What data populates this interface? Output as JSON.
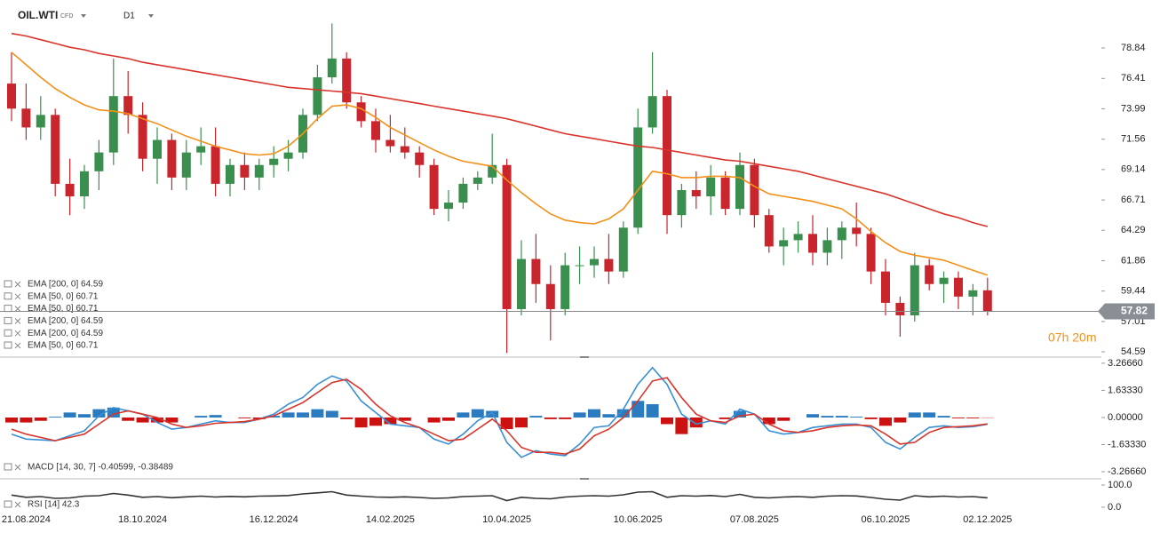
{
  "header": {
    "symbol": "OIL.WTI",
    "instrument_type": "CFD",
    "timeframe": "D1"
  },
  "countdown": "07h 20m",
  "chart_data": [
    {
      "type": "candlestick",
      "categories": [
        null,
        "21.08.2024",
        null,
        null,
        null,
        null,
        null,
        null,
        null,
        "18.10.2024",
        null,
        null,
        null,
        null,
        null,
        null,
        null,
        null,
        "16.12.2024",
        null,
        null,
        null,
        null,
        null,
        null,
        null,
        "14.02.2025",
        null,
        null,
        null,
        null,
        null,
        null,
        null,
        "10.04.2025",
        null,
        null,
        null,
        null,
        null,
        null,
        null,
        null,
        "10.06.2025",
        null,
        null,
        null,
        null,
        null,
        null,
        null,
        "07.08.2025",
        null,
        null,
        null,
        null,
        null,
        null,
        null,
        null,
        "06.10.2025",
        null,
        null,
        null,
        null,
        null,
        null,
        "02.12.2025"
      ],
      "ohlc": [
        [
          76,
          78.5,
          73,
          74
        ],
        [
          74,
          76,
          71.5,
          72.5
        ],
        [
          72.5,
          75,
          71.5,
          73.5
        ],
        [
          73.5,
          74,
          67,
          68
        ],
        [
          68,
          70,
          65.5,
          67
        ],
        [
          67,
          69.5,
          66,
          69
        ],
        [
          69,
          71.5,
          67.5,
          70.5
        ],
        [
          70.5,
          78,
          69.5,
          75
        ],
        [
          75,
          77,
          72,
          73.5
        ],
        [
          73.5,
          74.5,
          69,
          70
        ],
        [
          70,
          72.5,
          68,
          71.5
        ],
        [
          71.5,
          72,
          67.5,
          68.5
        ],
        [
          68.5,
          71.5,
          67.5,
          70.5
        ],
        [
          70.5,
          72.5,
          69.5,
          71
        ],
        [
          71,
          72.5,
          67,
          68
        ],
        [
          68,
          70,
          67,
          69.5
        ],
        [
          69.5,
          70.5,
          67.5,
          68.5
        ],
        [
          68.5,
          70,
          67.5,
          69.5
        ],
        [
          69.5,
          71,
          68.5,
          70
        ],
        [
          70,
          71.5,
          69,
          70.5
        ],
        [
          70.5,
          74,
          70,
          73.5
        ],
        [
          73.5,
          77.5,
          73,
          76.5
        ],
        [
          76.5,
          80.8,
          76,
          78
        ],
        [
          78,
          78.5,
          74,
          74.5
        ],
        [
          74.5,
          75,
          72.5,
          73
        ],
        [
          73,
          74,
          70.5,
          71.5
        ],
        [
          71.5,
          73.5,
          70.5,
          71
        ],
        [
          71,
          72.5,
          70,
          70.5
        ],
        [
          70.5,
          71,
          68.5,
          69.5
        ],
        [
          69.5,
          70,
          65.5,
          66
        ],
        [
          66,
          67.5,
          65,
          66.5
        ],
        [
          66.5,
          68.5,
          66,
          68
        ],
        [
          68,
          69,
          67.5,
          68.5
        ],
        [
          68.5,
          72,
          68,
          69.5
        ],
        [
          69.5,
          70,
          54.5,
          58
        ],
        [
          58,
          63.5,
          57.5,
          62
        ],
        [
          62,
          64,
          58.5,
          60
        ],
        [
          60,
          61.5,
          55.5,
          58
        ],
        [
          58,
          62.5,
          57.5,
          61.5
        ],
        [
          61.5,
          63,
          60,
          61.5
        ],
        [
          61.5,
          63,
          60.5,
          62
        ],
        [
          62,
          64,
          60,
          61
        ],
        [
          61,
          65,
          60.5,
          64.5
        ],
        [
          64.5,
          74,
          64,
          72.5
        ],
        [
          72.5,
          78.5,
          72,
          75
        ],
        [
          75,
          75.5,
          64,
          65.5
        ],
        [
          65.5,
          68,
          64.5,
          67.5
        ],
        [
          67.5,
          69,
          66,
          67
        ],
        [
          67,
          69.5,
          65.5,
          68.5
        ],
        [
          68.5,
          69,
          65.5,
          66
        ],
        [
          66,
          70.5,
          65.5,
          69.5
        ],
        [
          69.5,
          70,
          64.5,
          65.5
        ],
        [
          65.5,
          66,
          62.5,
          63
        ],
        [
          63,
          64.5,
          61.5,
          63.5
        ],
        [
          63.5,
          65,
          62.5,
          64
        ],
        [
          64,
          65.5,
          61.5,
          62.5
        ],
        [
          62.5,
          64.5,
          61.5,
          63.5
        ],
        [
          63.5,
          65,
          62,
          64.5
        ],
        [
          64.5,
          66.5,
          63,
          64
        ],
        [
          64,
          64.5,
          60,
          61
        ],
        [
          61,
          62,
          57.5,
          58.5
        ],
        [
          58.5,
          59,
          55.8,
          57.5
        ],
        [
          57.5,
          62.5,
          57,
          61.5
        ],
        [
          61.5,
          62,
          59.5,
          60
        ],
        [
          60,
          61,
          58.5,
          60.5
        ],
        [
          60.5,
          61,
          58,
          59
        ],
        [
          59,
          60,
          57.5,
          59.5
        ],
        [
          59.5,
          60.5,
          57.5,
          57.82
        ]
      ],
      "colors": {
        "up": "#3a8f4e",
        "down": "#c8252c"
      },
      "series": [
        {
          "color": "#d9342b",
          "values": [
            80.0,
            79.8,
            79.5,
            79.2,
            78.9,
            78.7,
            78.4,
            78.2,
            78.0,
            77.7,
            77.5,
            77.3,
            77.1,
            76.9,
            76.7,
            76.5,
            76.3,
            76.1,
            75.9,
            75.7,
            75.6,
            75.5,
            75.4,
            75.3,
            75.2,
            75.0,
            74.8,
            74.6,
            74.4,
            74.2,
            74.0,
            73.8,
            73.6,
            73.4,
            73.2,
            72.9,
            72.6,
            72.3,
            72.0,
            71.8,
            71.6,
            71.4,
            71.2,
            71.0,
            70.9,
            70.7,
            70.5,
            70.3,
            70.1,
            69.9,
            69.8,
            69.6,
            69.4,
            69.2,
            69.0,
            68.7,
            68.4,
            68.1,
            67.8,
            67.5,
            67.2,
            66.8,
            66.4,
            66.0,
            65.6,
            65.3,
            64.9,
            64.59
          ]
        },
        {
          "color": "#f39019",
          "values": [
            78.5,
            77.5,
            76.5,
            75.6,
            74.9,
            74.3,
            73.9,
            73.8,
            73.6,
            73.2,
            72.8,
            72.3,
            71.8,
            71.4,
            71.0,
            70.7,
            70.4,
            70.3,
            70.4,
            71.0,
            72.0,
            73.2,
            74.2,
            74.3,
            74.0,
            73.3,
            72.5,
            71.9,
            71.3,
            70.7,
            70.2,
            69.8,
            69.6,
            69.4,
            68.3,
            67.3,
            66.4,
            65.6,
            65.1,
            64.9,
            64.8,
            65.2,
            66.0,
            67.5,
            69.0,
            68.8,
            68.5,
            68.5,
            68.6,
            68.6,
            68.5,
            67.8,
            67.2,
            67.0,
            66.8,
            66.6,
            66.3,
            66.0,
            65.2,
            64.2,
            63.3,
            62.6,
            62.3,
            62.1,
            61.9,
            61.5,
            61.1,
            60.71
          ]
        }
      ],
      "legend": [
        "EMA [200, 0] 64.59",
        "EMA [50, 0] 60.71",
        "EMA [50, 0] 60.71",
        "EMA [200, 0] 64.59",
        "EMA [200, 0] 64.59",
        "EMA [50, 0] 60.71"
      ],
      "current_price": 57.82,
      "ylim": [
        54.31,
        82.67
      ],
      "yticks": [
        78.84,
        76.41,
        73.99,
        71.56,
        69.14,
        66.71,
        64.29,
        61.86,
        59.44,
        57.01,
        54.59
      ]
    },
    {
      "type": "macd",
      "legend": "MACD [14, 30, 7] -0.40599, -0.38489",
      "histogram": {
        "colors": {
          "up": "#2a7bc0",
          "down": "#cc1111"
        },
        "values": [
          -0.3,
          -0.3,
          -0.2,
          0.05,
          0.3,
          0.2,
          0.5,
          0.6,
          -0.2,
          -0.3,
          -0.3,
          -0.3,
          0,
          0.1,
          0.15,
          0,
          -0.05,
          -0.1,
          0.1,
          0.3,
          0.3,
          0.5,
          0.4,
          -0.1,
          -0.6,
          -0.5,
          -0.4,
          -0.2,
          0,
          -0.3,
          -0.2,
          0.3,
          0.5,
          0.4,
          -0.7,
          -0.6,
          0.1,
          -0.1,
          -0.1,
          0.3,
          0.5,
          0.2,
          0.5,
          1.0,
          0.8,
          -0.4,
          -1.0,
          -0.6,
          0,
          -0.1,
          0.4,
          0,
          -0.4,
          -0.2,
          0,
          0.2,
          0.1,
          0.1,
          0.05,
          -0.1,
          -0.5,
          -0.3,
          0.3,
          0.3,
          0.1,
          -0.05,
          -0.05,
          -0.02
        ]
      },
      "series": [
        {
          "color": "#3a8fd4",
          "values": [
            -1.0,
            -1.3,
            -1.35,
            -1.4,
            -1.1,
            -0.8,
            0.1,
            0.6,
            0.4,
            0.2,
            -0.3,
            -0.7,
            -0.6,
            -0.4,
            -0.2,
            -0.3,
            -0.3,
            -0.1,
            0.2,
            0.8,
            1.2,
            2.0,
            2.5,
            2.2,
            1.0,
            0.3,
            -0.4,
            -0.5,
            -0.6,
            -1.3,
            -1.6,
            -1.0,
            -0.2,
            0.3,
            -1.5,
            -2.4,
            -2.0,
            -2.2,
            -2.3,
            -1.6,
            -0.6,
            -0.5,
            0.5,
            2.0,
            3.0,
            2.0,
            0.2,
            -0.4,
            -0.2,
            -0.4,
            0.5,
            0.2,
            -0.8,
            -1.0,
            -0.9,
            -0.6,
            -0.5,
            -0.4,
            -0.4,
            -0.6,
            -1.5,
            -1.9,
            -1.2,
            -0.6,
            -0.5,
            -0.6,
            -0.55,
            -0.40599
          ]
        },
        {
          "color": "#d9342b",
          "values": [
            -0.7,
            -1.0,
            -1.2,
            -1.4,
            -1.2,
            -1.0,
            -0.4,
            0.2,
            0.4,
            0.2,
            0,
            -0.4,
            -0.6,
            -0.5,
            -0.35,
            -0.3,
            -0.25,
            -0.1,
            0.1,
            0.5,
            0.9,
            1.5,
            2.1,
            2.3,
            1.7,
            0.8,
            0.1,
            -0.3,
            -0.6,
            -1.0,
            -1.4,
            -1.3,
            -0.7,
            -0.1,
            -0.8,
            -1.8,
            -2.1,
            -2.1,
            -2.2,
            -1.9,
            -1.1,
            -0.7,
            0,
            1.0,
            2.2,
            2.4,
            1.2,
            0.2,
            -0.2,
            -0.3,
            0.1,
            0.2,
            -0.4,
            -0.8,
            -0.9,
            -0.8,
            -0.6,
            -0.5,
            -0.45,
            -0.5,
            -1.0,
            -1.6,
            -1.5,
            -0.9,
            -0.6,
            -0.55,
            -0.5,
            -0.38489
          ]
        }
      ],
      "ylim": [
        -3.64,
        3.53
      ],
      "yticks": [
        {
          "value": 3.2666,
          "label": "3.26660"
        },
        {
          "value": 1.6333,
          "label": "1.63330"
        },
        {
          "value": 0,
          "label": "0.00000"
        },
        {
          "value": -1.6333,
          "label": "-1.63330"
        },
        {
          "value": -3.2666,
          "label": "-3.26660"
        }
      ]
    },
    {
      "type": "line",
      "legend": "RSI [14] 42.3",
      "series": [
        {
          "color": "#333333",
          "values": [
            55,
            45,
            48,
            40,
            42,
            50,
            52,
            62,
            55,
            45,
            48,
            43,
            47,
            50,
            46,
            49,
            47,
            50,
            51,
            53,
            60,
            65,
            70,
            55,
            50,
            46,
            45,
            47,
            44,
            40,
            42,
            48,
            50,
            52,
            30,
            45,
            40,
            38,
            46,
            50,
            52,
            50,
            56,
            68,
            70,
            45,
            52,
            50,
            53,
            48,
            58,
            45,
            42,
            46,
            48,
            45,
            50,
            52,
            51,
            44,
            36,
            32,
            52,
            47,
            50,
            46,
            48,
            42.3
          ]
        }
      ],
      "ylim": [
        -28,
        124
      ],
      "yticks": [
        {
          "value": 100,
          "label": "100.0"
        },
        {
          "value": 0,
          "label": "0.0"
        }
      ]
    }
  ]
}
